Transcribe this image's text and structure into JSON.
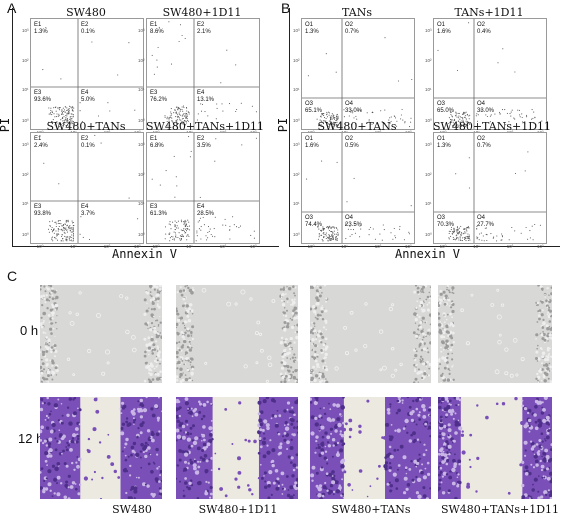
{
  "panel_a": {
    "letter": "A",
    "y_axis": "PI",
    "x_axis": "Annexin V",
    "plots": [
      {
        "title": "SW480",
        "labels": [
          "E1",
          "E2",
          "E3",
          "E4"
        ],
        "values": [
          "1.3%",
          "0.1%",
          "93.6%",
          "5.0%"
        ]
      },
      {
        "title": "SW480+1D11",
        "labels": [
          "E1",
          "E2",
          "E3",
          "E4"
        ],
        "values": [
          "8.6%",
          "2.1%",
          "76.2%",
          "13.1%"
        ]
      },
      {
        "title": "SW480+TANs",
        "labels": [
          "E1",
          "E2",
          "E3",
          "E4"
        ],
        "values": [
          "2.4%",
          "0.1%",
          "93.8%",
          "3.7%"
        ]
      },
      {
        "title": "SW480+TANs+1D11",
        "labels": [
          "E1",
          "E2",
          "E3",
          "E4"
        ],
        "values": [
          "6.8%",
          "3.5%",
          "61.3%",
          "28.5%"
        ]
      }
    ]
  },
  "panel_b": {
    "letter": "B",
    "y_axis": "PI",
    "x_axis": "Annexin V",
    "plots": [
      {
        "title": "TANs",
        "labels": [
          "O1",
          "O2",
          "O3",
          "O4"
        ],
        "values": [
          "1.3%",
          "0.7%",
          "65.1%",
          "33.0%"
        ]
      },
      {
        "title": "TANs+1D11",
        "labels": [
          "O1",
          "O2",
          "O3",
          "O4"
        ],
        "values": [
          "1.6%",
          "0.4%",
          "65.0%",
          "33.0%"
        ]
      },
      {
        "title": "SW480+TANs",
        "labels": [
          "O1",
          "O2",
          "O3",
          "O4"
        ],
        "values": [
          "1.6%",
          "0.5%",
          "74.4%",
          "23.5%"
        ]
      },
      {
        "title": "SW480+TANs+1D11",
        "labels": [
          "O1",
          "O2",
          "O3",
          "O4"
        ],
        "values": [
          "1.3%",
          "0.7%",
          "70.3%",
          "27.7%"
        ]
      }
    ]
  },
  "ticks": {
    "x": [
      "10⁰",
      "10¹",
      "10²",
      "10³"
    ],
    "y": [
      "10⁰",
      "10¹",
      "10²",
      "10³"
    ]
  },
  "panel_c": {
    "letter": "C",
    "rows": [
      "0 h",
      "12 h"
    ],
    "columns": [
      "SW480",
      "SW480+1D11",
      "SW480+TANs",
      "SW480+TANs+1D11"
    ]
  },
  "colors": {
    "dots": "#555555",
    "stain": "#7a4fb8",
    "stain_light": "#c9b6e6",
    "phase": "#cfcfcf"
  }
}
